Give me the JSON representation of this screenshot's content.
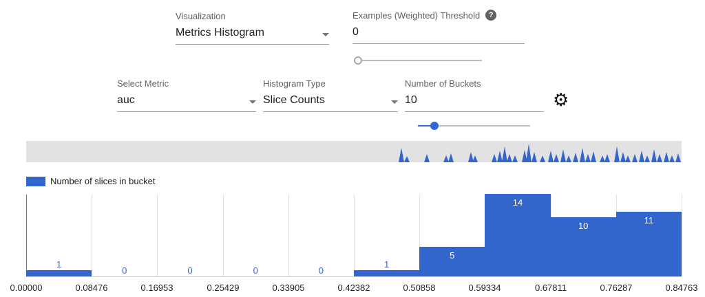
{
  "controls": {
    "visualization": {
      "label": "Visualization",
      "value": "Metrics Histogram"
    },
    "threshold": {
      "label": "Examples (Weighted) Threshold",
      "value": "0",
      "slider_percent": 0
    },
    "select_metric": {
      "label": "Select Metric",
      "value": "auc"
    },
    "histogram_type": {
      "label": "Histogram Type",
      "value": "Slice Counts"
    },
    "num_buckets": {
      "label": "Number of Buckets",
      "value": "10",
      "slider_percent": 15
    }
  },
  "icons": {
    "help": "?",
    "gear": "⚙"
  },
  "legend": {
    "label": "Number of slices in bucket"
  },
  "colors": {
    "bar": "#3366cc",
    "slider_active": "#3367d6"
  },
  "overview": {
    "spikes": [
      [
        545,
        21
      ],
      [
        553,
        9
      ],
      [
        582,
        12
      ],
      [
        610,
        10
      ],
      [
        617,
        13
      ],
      [
        646,
        15
      ],
      [
        652,
        10
      ],
      [
        680,
        12
      ],
      [
        688,
        17
      ],
      [
        695,
        23
      ],
      [
        702,
        12
      ],
      [
        710,
        10
      ],
      [
        724,
        18
      ],
      [
        730,
        27
      ],
      [
        738,
        15
      ],
      [
        750,
        10
      ],
      [
        762,
        17
      ],
      [
        770,
        12
      ],
      [
        780,
        19
      ],
      [
        788,
        10
      ],
      [
        798,
        14
      ],
      [
        808,
        21
      ],
      [
        816,
        12
      ],
      [
        824,
        16
      ],
      [
        837,
        10
      ],
      [
        844,
        12
      ],
      [
        858,
        23
      ],
      [
        867,
        15
      ],
      [
        874,
        10
      ],
      [
        884,
        12
      ],
      [
        894,
        17
      ],
      [
        902,
        10
      ],
      [
        912,
        19
      ],
      [
        920,
        12
      ],
      [
        930,
        15
      ],
      [
        938,
        10
      ],
      [
        947,
        13
      ]
    ]
  },
  "chart_data": {
    "type": "bar",
    "title": "Number of slices in bucket",
    "x_ticks": [
      "0.00000",
      "0.08476",
      "0.16953",
      "0.25429",
      "0.33905",
      "0.42382",
      "0.50858",
      "0.59334",
      "0.67811",
      "0.76287",
      "0.84763"
    ],
    "values": [
      1,
      0,
      0,
      0,
      0,
      1,
      5,
      14,
      10,
      11
    ],
    "xlabel": "",
    "ylabel": "",
    "ylim": [
      0,
      14
    ],
    "grid": "vertical",
    "legend_position": "top-left"
  }
}
